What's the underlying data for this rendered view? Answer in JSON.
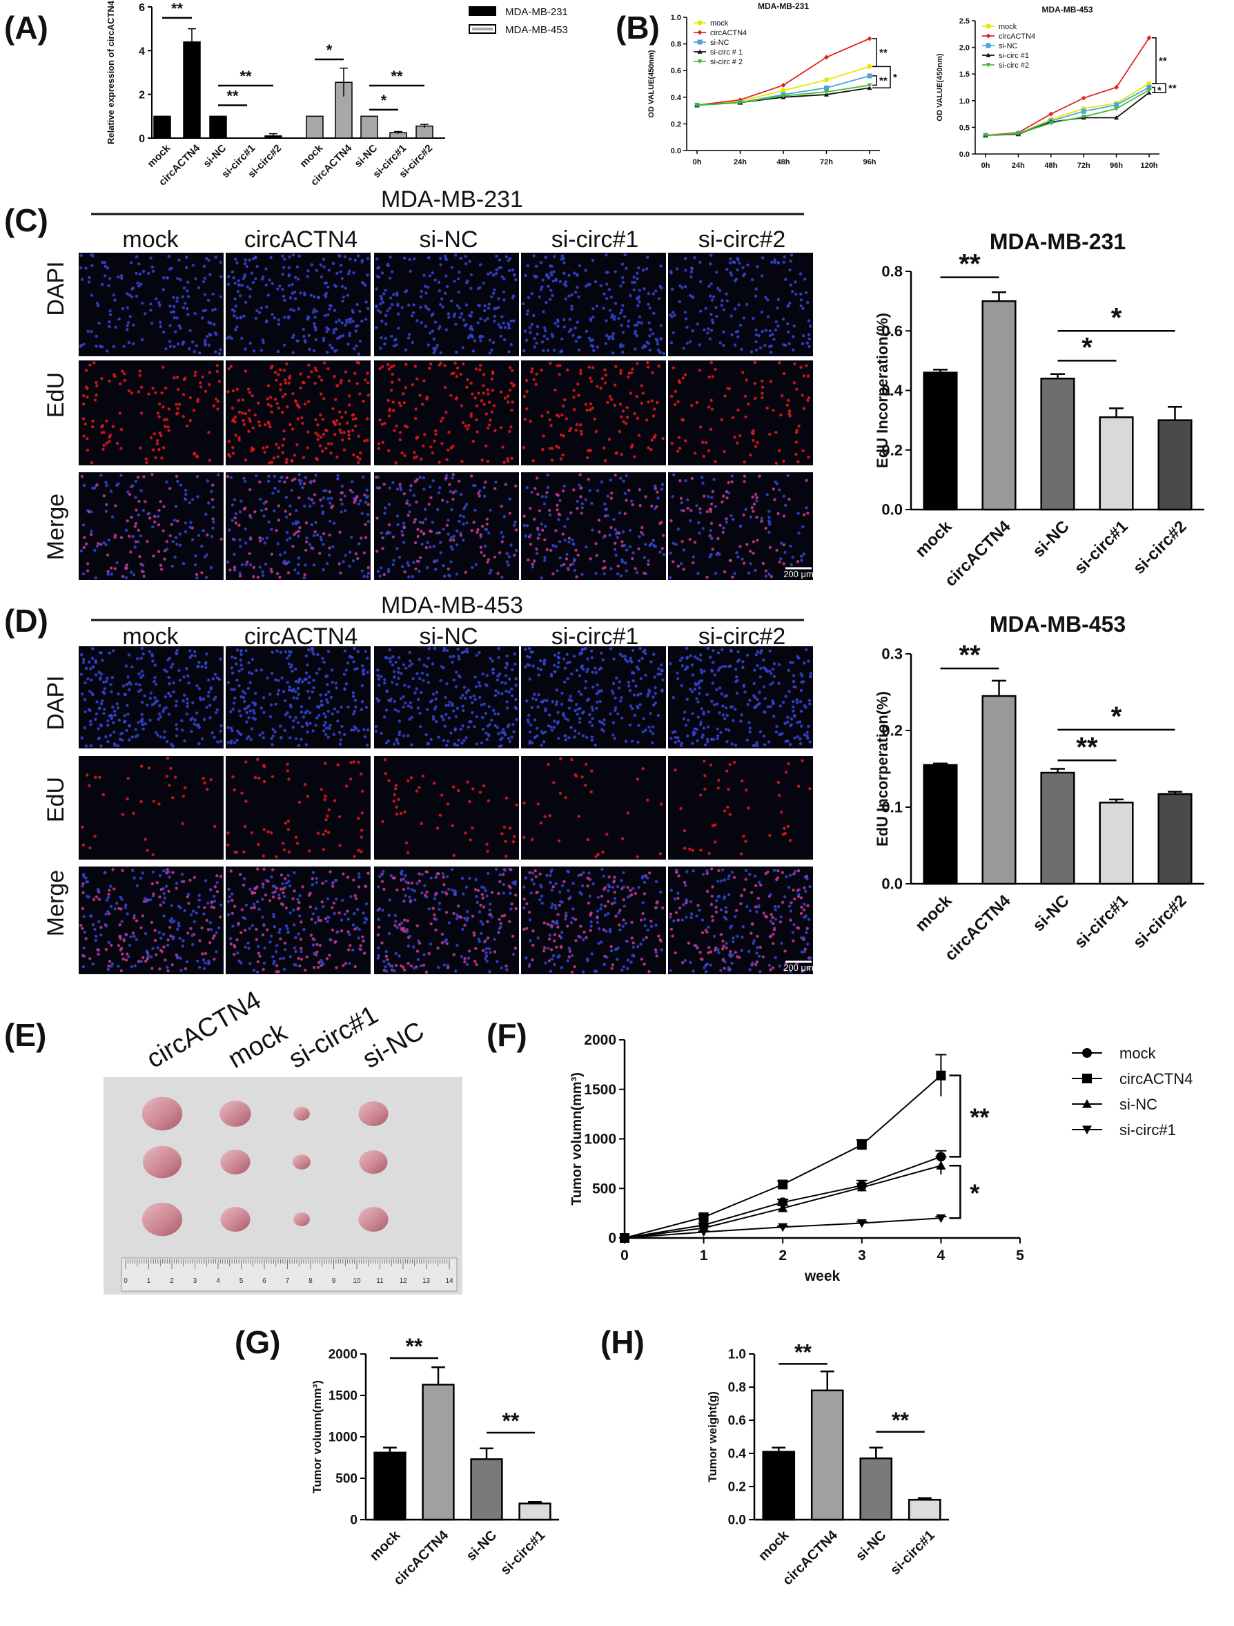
{
  "panel_labels": [
    "(A)",
    "(B)",
    "(C)",
    "(D)",
    "(E)",
    "(F)",
    "(G)",
    "(H)"
  ],
  "sig": {
    "two": "**",
    "one": "*"
  },
  "micro_C": {
    "title": "MDA-MB-231",
    "columns": [
      "mock",
      "circACTN4",
      "si-NC",
      "si-circ#1",
      "si-circ#2"
    ],
    "rows": [
      "DAPI",
      "EdU",
      "Merge"
    ],
    "scale_bar": "200 μm"
  },
  "micro_D": {
    "title": "MDA-MB-453",
    "columns": [
      "mock",
      "circACTN4",
      "si-NC",
      "si-circ#1",
      "si-circ#2"
    ],
    "rows": [
      "DAPI",
      "EdU",
      "Merge"
    ],
    "scale_bar": "200 μm"
  },
  "photo_E": {
    "labels": [
      "circACTN4",
      "mock",
      "si-circ#1",
      "si-NC"
    ],
    "ruler_numbers": [
      "0",
      "1",
      "2",
      "3",
      "4",
      "5",
      "6",
      "7",
      "8",
      "9",
      "10",
      "11",
      "12",
      "13",
      "14"
    ]
  },
  "colors": {
    "black": "#000000",
    "dgray": "#6a6a6a",
    "mgray": "#8c8c8c",
    "lgray": "#d8d8d8",
    "dapi": "#3344cc",
    "edu": "#e01818"
  },
  "chart_data": [
    {
      "id": "A",
      "type": "bar",
      "ylabel": "Relative expression of circACTN4",
      "categories": [
        "mock",
        "circACTN4",
        "si-NC",
        "si-circ#1",
        "si-circ#2"
      ],
      "ylim": [
        0,
        6
      ],
      "yticks": [
        "0",
        "2",
        "4",
        "6"
      ],
      "series": [
        {
          "name": "MDA-MB-231",
          "values": [
            1.0,
            4.4,
            1.0,
            0.0,
            0.1
          ],
          "errors": [
            0,
            0.6,
            0,
            0,
            0.1
          ],
          "color": "#000000"
        },
        {
          "name": "MDA-MB-453",
          "values": [
            1.0,
            2.55,
            1.0,
            0.25,
            0.55
          ],
          "errors": [
            0,
            0.65,
            0,
            0.05,
            0.08
          ],
          "color": "#a8a8a8"
        }
      ]
    },
    {
      "id": "B1",
      "type": "line",
      "title": "MDA-MB-231",
      "ylabel": "OD VALUE(450nm)",
      "x": [
        "0h",
        "24h",
        "48h",
        "72h",
        "96h"
      ],
      "ylim": [
        0,
        1.0
      ],
      "yticks": [
        "0.0",
        "0.2",
        "0.4",
        "0.6",
        "0.8",
        "1.0"
      ],
      "legend": "top-left",
      "series": [
        {
          "name": "mock",
          "values": [
            0.34,
            0.37,
            0.45,
            0.53,
            0.63
          ],
          "color": "#e6e600"
        },
        {
          "name": "circACTN4",
          "values": [
            0.34,
            0.38,
            0.49,
            0.7,
            0.84
          ],
          "color": "#e32222"
        },
        {
          "name": "si-NC",
          "values": [
            0.34,
            0.36,
            0.42,
            0.47,
            0.56
          ],
          "color": "#4aa3e0"
        },
        {
          "name": "si-circ # 1",
          "values": [
            0.34,
            0.36,
            0.4,
            0.42,
            0.47
          ],
          "color": "#111111"
        },
        {
          "name": "si-circ # 2",
          "values": [
            0.34,
            0.36,
            0.41,
            0.44,
            0.49
          ],
          "color": "#44bb33"
        }
      ]
    },
    {
      "id": "B2",
      "type": "line",
      "title": "MDA-MB-453",
      "ylabel": "OD VALUE(450nm)",
      "x": [
        "0h",
        "24h",
        "48h",
        "72h",
        "96h",
        "120h"
      ],
      "ylim": [
        0,
        2.5
      ],
      "yticks": [
        "0.0",
        "0.5",
        "1.0",
        "1.5",
        "2.0",
        "2.5"
      ],
      "legend": "top-left",
      "series": [
        {
          "name": "mock",
          "values": [
            0.35,
            0.38,
            0.65,
            0.85,
            0.95,
            1.32
          ],
          "color": "#e6e600"
        },
        {
          "name": "circACTN4",
          "values": [
            0.35,
            0.4,
            0.75,
            1.05,
            1.25,
            2.18
          ],
          "color": "#e32222"
        },
        {
          "name": "si-NC",
          "values": [
            0.35,
            0.38,
            0.62,
            0.8,
            0.92,
            1.25
          ],
          "color": "#4aa3e0"
        },
        {
          "name": "si-circ #1",
          "values": [
            0.35,
            0.37,
            0.6,
            0.68,
            0.68,
            1.15
          ],
          "color": "#111111"
        },
        {
          "name": "si-circ #2",
          "values": [
            0.35,
            0.38,
            0.58,
            0.7,
            0.85,
            1.2
          ],
          "color": "#44bb33"
        }
      ]
    },
    {
      "id": "C",
      "type": "bar",
      "title": "MDA-MB-231",
      "ylabel": "EdU Incorperation(%)",
      "categories": [
        "mock",
        "circACTN4",
        "si-NC",
        "si-circ#1",
        "si-circ#2"
      ],
      "ylim": [
        0,
        0.8
      ],
      "yticks": [
        "0.0",
        "0.2",
        "0.4",
        "0.6",
        "0.8"
      ],
      "values": [
        0.46,
        0.7,
        0.44,
        0.31,
        0.3
      ],
      "errors": [
        0.01,
        0.03,
        0.015,
        0.03,
        0.045
      ],
      "colors": [
        "#000000",
        "#9a9a9a",
        "#6e6e6e",
        "#d9d9d9",
        "#4a4a4a"
      ]
    },
    {
      "id": "D",
      "type": "bar",
      "title": "MDA-MB-453",
      "ylabel": "EdU Incorperation(%)",
      "categories": [
        "mock",
        "circACTN4",
        "si-NC",
        "si-circ#1",
        "si-circ#2"
      ],
      "ylim": [
        0,
        0.3
      ],
      "yticks": [
        "0.0",
        "0.1",
        "0.2",
        "0.3"
      ],
      "values": [
        0.155,
        0.245,
        0.145,
        0.106,
        0.117
      ],
      "errors": [
        0.002,
        0.02,
        0.005,
        0.004,
        0.003
      ],
      "colors": [
        "#000000",
        "#9a9a9a",
        "#6e6e6e",
        "#d9d9d9",
        "#4a4a4a"
      ]
    },
    {
      "id": "F",
      "type": "line",
      "xlabel": "week",
      "ylabel": "Tumor volumn(mm³)",
      "x": [
        0,
        1,
        2,
        3,
        4
      ],
      "xlim": [
        0,
        5
      ],
      "xticks": [
        "0",
        "1",
        "2",
        "3",
        "4",
        "5"
      ],
      "ylim": [
        0,
        2000
      ],
      "yticks": [
        "0",
        "500",
        "1000",
        "1500",
        "2000"
      ],
      "legend": "right",
      "series": [
        {
          "name": "mock",
          "marker": "circle",
          "values": [
            0,
            130,
            360,
            530,
            820
          ],
          "errors": [
            0,
            20,
            30,
            50,
            60
          ]
        },
        {
          "name": "circACTN4",
          "marker": "square",
          "values": [
            0,
            210,
            540,
            940,
            1640
          ],
          "errors": [
            0,
            25,
            35,
            50,
            210
          ]
        },
        {
          "name": "si-NC",
          "marker": "triangle",
          "values": [
            0,
            100,
            300,
            510,
            730
          ],
          "errors": [
            0,
            20,
            30,
            40,
            90
          ]
        },
        {
          "name": "si-circ#1",
          "marker": "triangle-down",
          "values": [
            0,
            60,
            110,
            150,
            200
          ],
          "errors": [
            0,
            10,
            10,
            15,
            15
          ]
        }
      ]
    },
    {
      "id": "G",
      "type": "bar",
      "ylabel": "Tumor volumn(mm³)",
      "categories": [
        "mock",
        "circACTN4",
        "si-NC",
        "si-circ#1"
      ],
      "ylim": [
        0,
        2000
      ],
      "yticks": [
        "0",
        "500",
        "1000",
        "1500",
        "2000"
      ],
      "values": [
        810,
        1630,
        730,
        195
      ],
      "errors": [
        60,
        210,
        130,
        20
      ],
      "colors": [
        "#000000",
        "#a0a0a0",
        "#7a7a7a",
        "#dcdcdc"
      ]
    },
    {
      "id": "H",
      "type": "bar",
      "ylabel": "Tumor weight(g)",
      "categories": [
        "mock",
        "circACTN4",
        "si-NC",
        "si-circ#1"
      ],
      "ylim": [
        0,
        1.0
      ],
      "yticks": [
        "0.0",
        "0.2",
        "0.4",
        "0.6",
        "0.8",
        "1.0"
      ],
      "values": [
        0.41,
        0.78,
        0.37,
        0.12
      ],
      "errors": [
        0.025,
        0.115,
        0.065,
        0.01
      ],
      "colors": [
        "#000000",
        "#a0a0a0",
        "#7a7a7a",
        "#dcdcdc"
      ]
    }
  ]
}
